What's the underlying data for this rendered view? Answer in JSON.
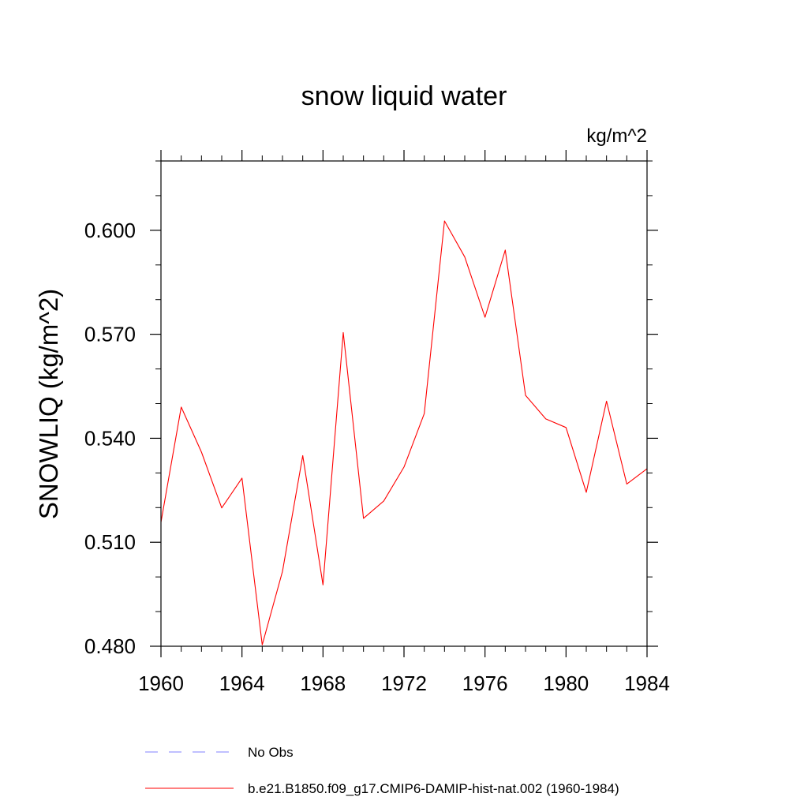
{
  "chart_data": {
    "type": "line",
    "title": "snow liquid water",
    "units": "kg/m^2",
    "ylabel": "SNOWLIQ  (kg/m^2)",
    "xlabel": "",
    "xlim": [
      1960,
      1984
    ],
    "ylim": [
      0.48,
      0.62
    ],
    "x_ticks": [
      "1960",
      "1964",
      "1968",
      "1972",
      "1976",
      "1980",
      "1984"
    ],
    "y_ticks": [
      "0.480",
      "0.510",
      "0.540",
      "0.570",
      "0.600"
    ],
    "x": [
      1960,
      1961,
      1962,
      1963,
      1964,
      1965,
      1966,
      1967,
      1968,
      1969,
      1970,
      1971,
      1972,
      1973,
      1974,
      1975,
      1976,
      1977,
      1978,
      1979,
      1980,
      1981,
      1982,
      1983,
      1984
    ],
    "series": [
      {
        "name": "b.e21.B1850.f09_g17.CMIP6-DAMIP-hist-nat.002 (1960-1984)",
        "color": "#ff0000",
        "style": "solid",
        "values": [
          0.5158,
          0.549,
          0.536,
          0.5199,
          0.5285,
          0.4804,
          0.5016,
          0.535,
          0.4977,
          0.5705,
          0.5169,
          0.5219,
          0.5317,
          0.5471,
          0.6027,
          0.5923,
          0.5749,
          0.5943,
          0.5524,
          0.5456,
          0.5431,
          0.5244,
          0.5507,
          0.5268,
          0.5312
        ]
      }
    ],
    "legend": [
      {
        "label": "No Obs",
        "color": "#8080ff",
        "style": "dashed"
      },
      {
        "label": "b.e21.B1850.f09_g17.CMIP6-DAMIP-hist-nat.002 (1960-1984)",
        "color": "#ff0000",
        "style": "solid"
      }
    ],
    "legend_placement": "bottom",
    "grid": false
  }
}
